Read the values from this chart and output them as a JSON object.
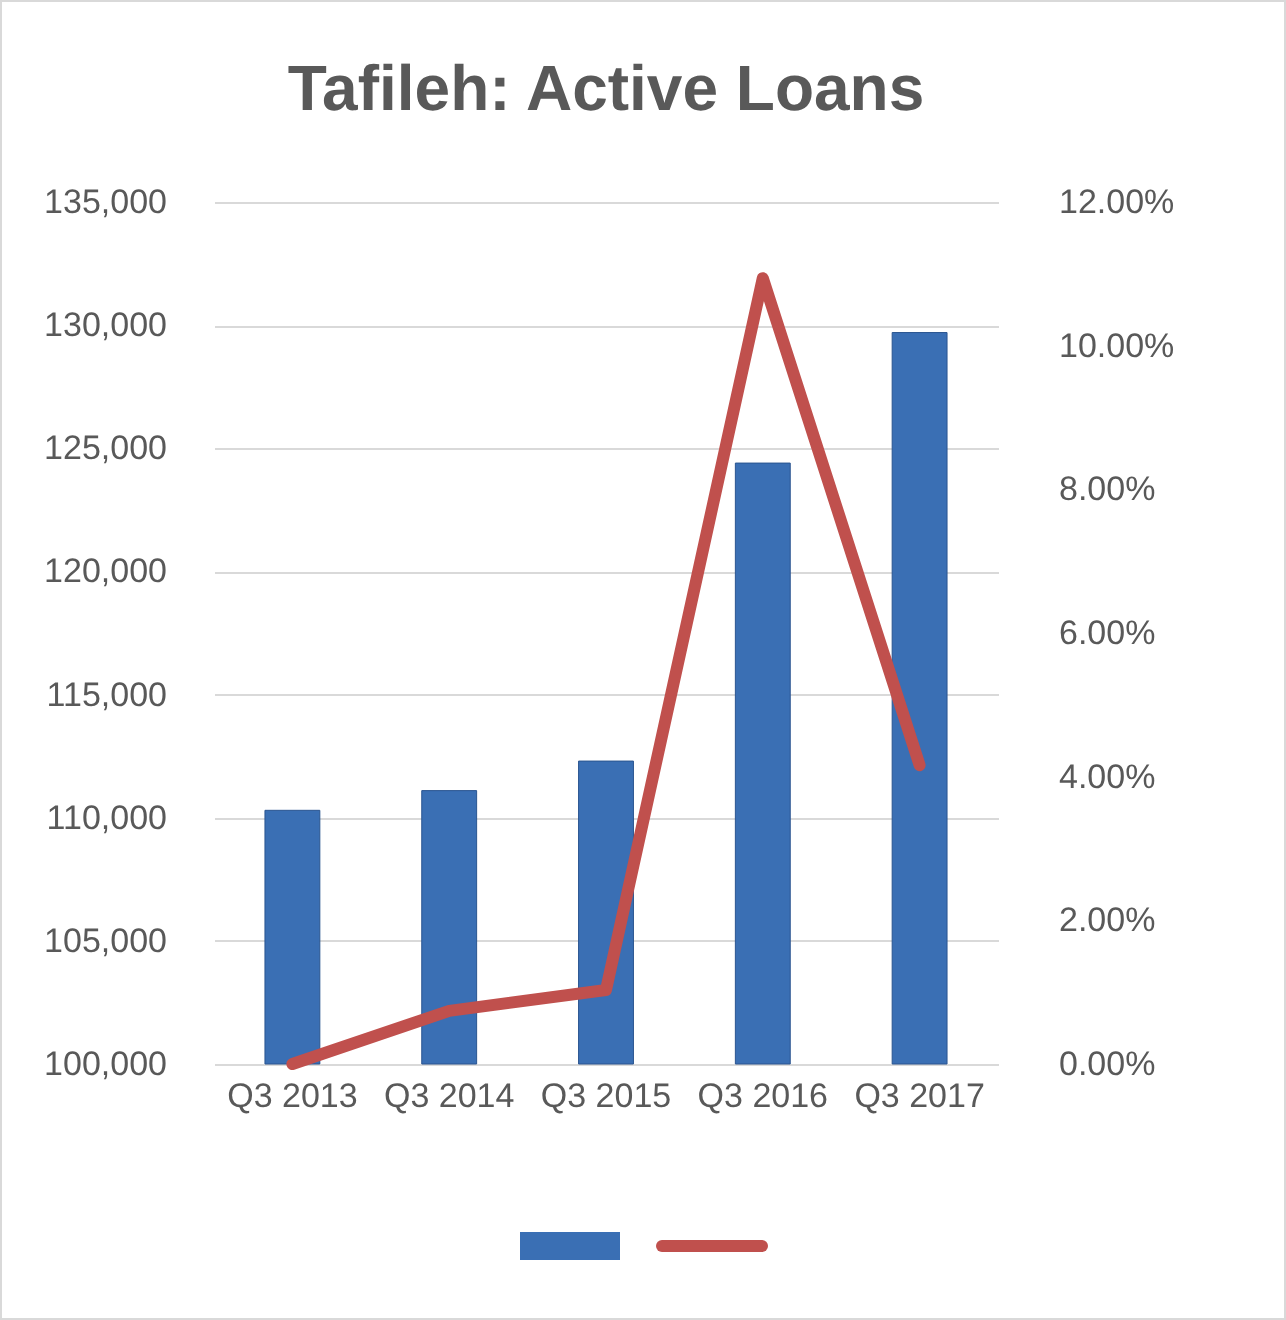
{
  "chart_data": {
    "type": "bar",
    "title": "Tafileh: Active Loans",
    "categories": [
      "Q3 2013",
      "Q3 2014",
      "Q3 2015",
      "Q3 2016",
      "Q3 2017"
    ],
    "series": [
      {
        "type": "bar",
        "color": "#3a6fb4",
        "values": [
          110300,
          111100,
          112300,
          124400,
          129700
        ]
      },
      {
        "type": "line",
        "axis": "y2",
        "color": "#c0504d",
        "values": [
          0,
          0.74,
          1.03,
          10.94,
          4.16
        ]
      }
    ],
    "ylim": [
      100000,
      135000
    ],
    "yticks": [
      {
        "value": 100000,
        "label": "100,000"
      },
      {
        "value": 105000,
        "label": "105,000"
      },
      {
        "value": 110000,
        "label": "110,000"
      },
      {
        "value": 115000,
        "label": "115,000"
      },
      {
        "value": 120000,
        "label": "120,000"
      },
      {
        "value": 125000,
        "label": "125,000"
      },
      {
        "value": 130000,
        "label": "130,000"
      },
      {
        "value": 135000,
        "label": "135,000"
      }
    ],
    "y2lim": [
      0,
      12
    ],
    "y2ticks": [
      {
        "value": 0,
        "label": "0.00%"
      },
      {
        "value": 2,
        "label": "2.00%"
      },
      {
        "value": 4,
        "label": "4.00%"
      },
      {
        "value": 6,
        "label": "6.00%"
      },
      {
        "value": 8,
        "label": "8.00%"
      },
      {
        "value": 10,
        "label": "10.00%"
      },
      {
        "value": 12,
        "label": "12.00%"
      }
    ],
    "grid": "y",
    "marker": "none",
    "line_style": "solid"
  }
}
